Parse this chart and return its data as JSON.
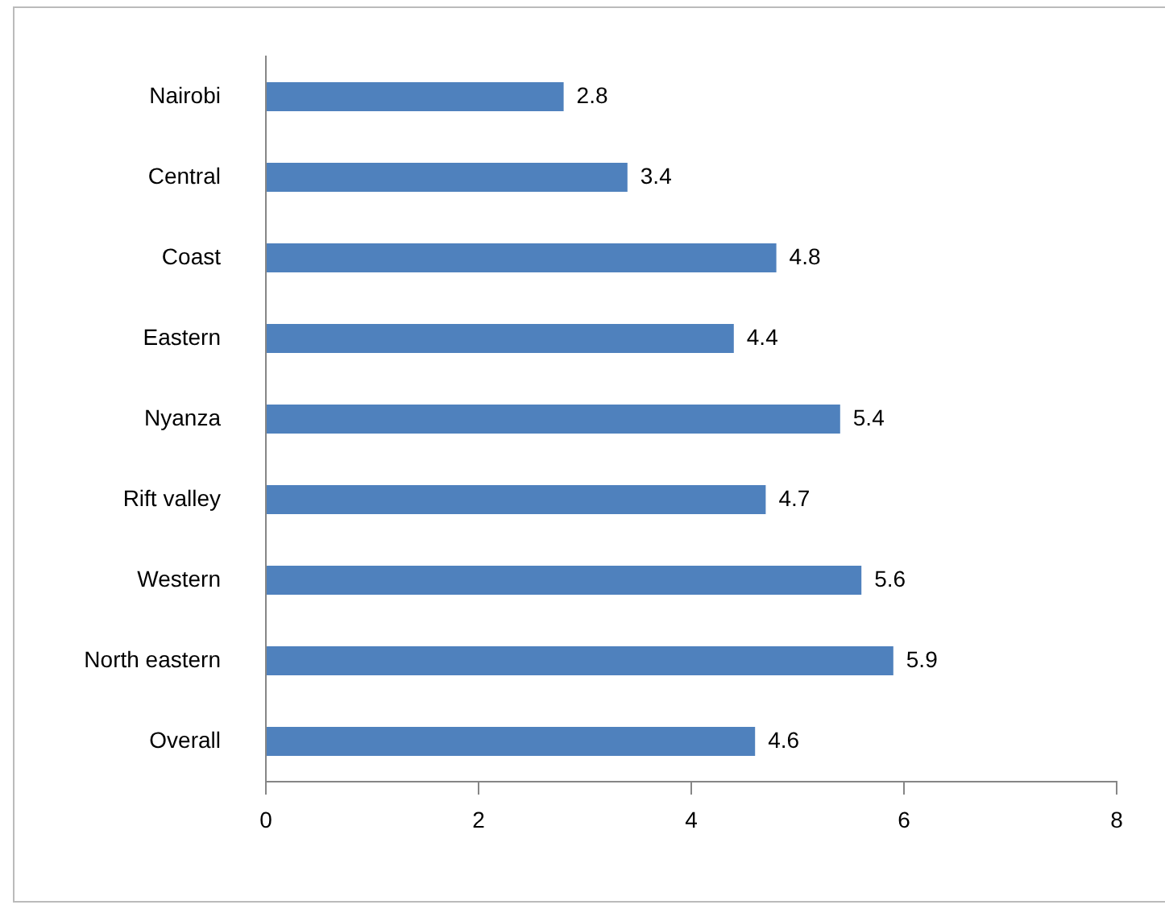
{
  "chart_data": {
    "type": "bar",
    "orientation": "horizontal",
    "categories": [
      "Nairobi",
      "Central",
      "Coast",
      "Eastern",
      "Nyanza",
      "Rift valley",
      "Western",
      "North eastern",
      "Overall"
    ],
    "values": [
      2.8,
      3.4,
      4.8,
      4.4,
      5.4,
      4.7,
      5.6,
      5.9,
      4.6
    ],
    "color": "#4f81bd",
    "xlim": [
      0,
      8
    ],
    "xticks": [
      0,
      2,
      4,
      6,
      8
    ],
    "data_labels": true,
    "legend": false
  }
}
